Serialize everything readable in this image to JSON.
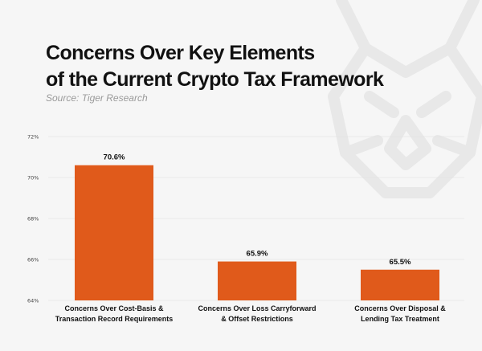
{
  "header": {
    "title_line1": "Concerns Over Key Elements",
    "title_line2": "of the Current Crypto Tax Framework",
    "source": "Source: Tiger Research"
  },
  "watermark": {
    "icon": "tiger-head-logo-icon",
    "color": "#e8e8e8"
  },
  "chart_data": {
    "type": "bar",
    "title": "Concerns Over Key Elements of the Current Crypto Tax Framework",
    "categories": [
      [
        "Concerns Over Cost-Basis &",
        "Transaction Record Requirements"
      ],
      [
        "Concerns Over Loss Carryforward",
        "& Offset Restrictions"
      ],
      [
        "Concerns Over Disposal &",
        "Lending Tax Treatment"
      ]
    ],
    "values": [
      70.6,
      65.9,
      65.5
    ],
    "value_labels": [
      "70.6%",
      "65.9%",
      "65.5%"
    ],
    "ylim": [
      64,
      72
    ],
    "yticks": [
      64,
      66,
      68,
      70,
      72
    ],
    "ytick_labels": [
      "64%",
      "66%",
      "68%",
      "70%",
      "72%"
    ],
    "grid": true,
    "legend": "none",
    "bar_color": "#e05a1b",
    "grid_color": "#dddddd"
  }
}
